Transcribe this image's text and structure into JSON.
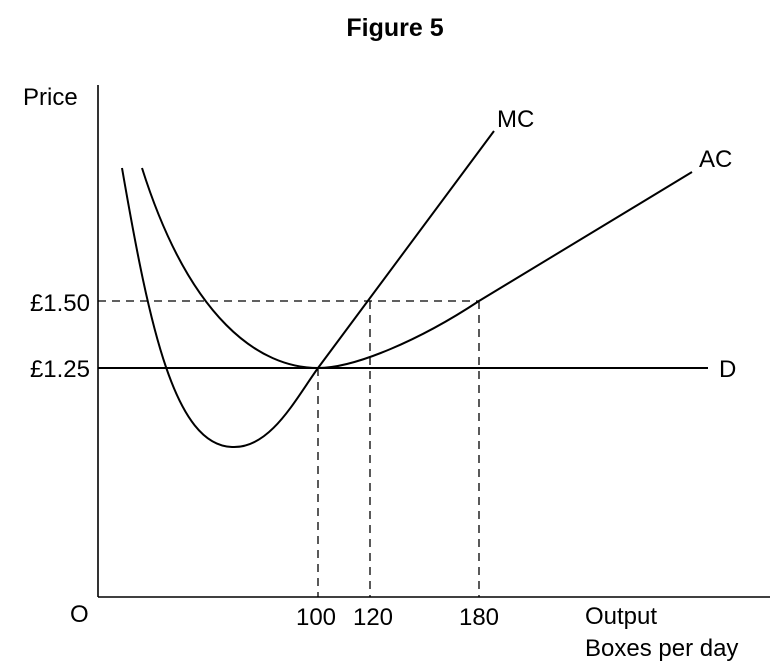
{
  "chart_data": {
    "type": "line",
    "title": "Figure 5",
    "ylabel": "Price",
    "xlabel_line1": "Output",
    "xlabel_line2": "Boxes per day",
    "origin_label": "O",
    "x_ticks": [
      "100",
      "120",
      "180"
    ],
    "y_ticks": [
      "£1.50",
      "£1.25"
    ],
    "series": [
      {
        "name": "MC"
      },
      {
        "name": "AC"
      },
      {
        "name": "D",
        "value": 1.25
      }
    ],
    "reference_points": [
      {
        "x": 100,
        "y": 1.25
      },
      {
        "x": 120,
        "y": 1.5
      },
      {
        "x": 180,
        "y": 1.5
      }
    ],
    "grid": false
  }
}
